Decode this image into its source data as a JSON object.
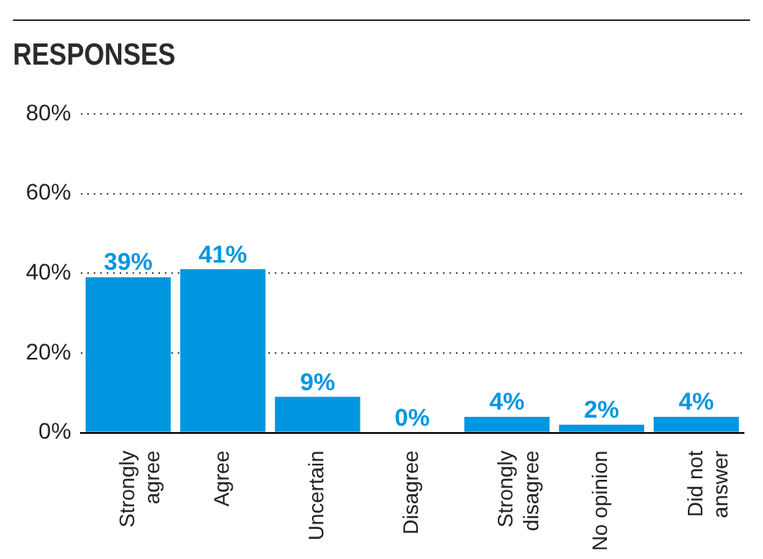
{
  "chart_data": {
    "type": "bar",
    "title": "RESPONSES",
    "categories": [
      "Strongly agree",
      "Agree",
      "Uncertain",
      "Disagree",
      "Strongly disagree",
      "No opinion",
      "Did not answer"
    ],
    "values": [
      39,
      41,
      9,
      0,
      4,
      2,
      4
    ],
    "value_labels": [
      "39%",
      "41%",
      "9%",
      "0%",
      "4%",
      "2%",
      "4%"
    ],
    "color": "#0096e0",
    "ylim": [
      0,
      80
    ],
    "yticks": [
      {
        "value": 0,
        "label": "0%"
      },
      {
        "value": 20,
        "label": "20%"
      },
      {
        "value": 40,
        "label": "40%"
      },
      {
        "value": 60,
        "label": "60%"
      },
      {
        "value": 80,
        "label": "80%"
      }
    ],
    "grid": "y",
    "legend": false
  }
}
